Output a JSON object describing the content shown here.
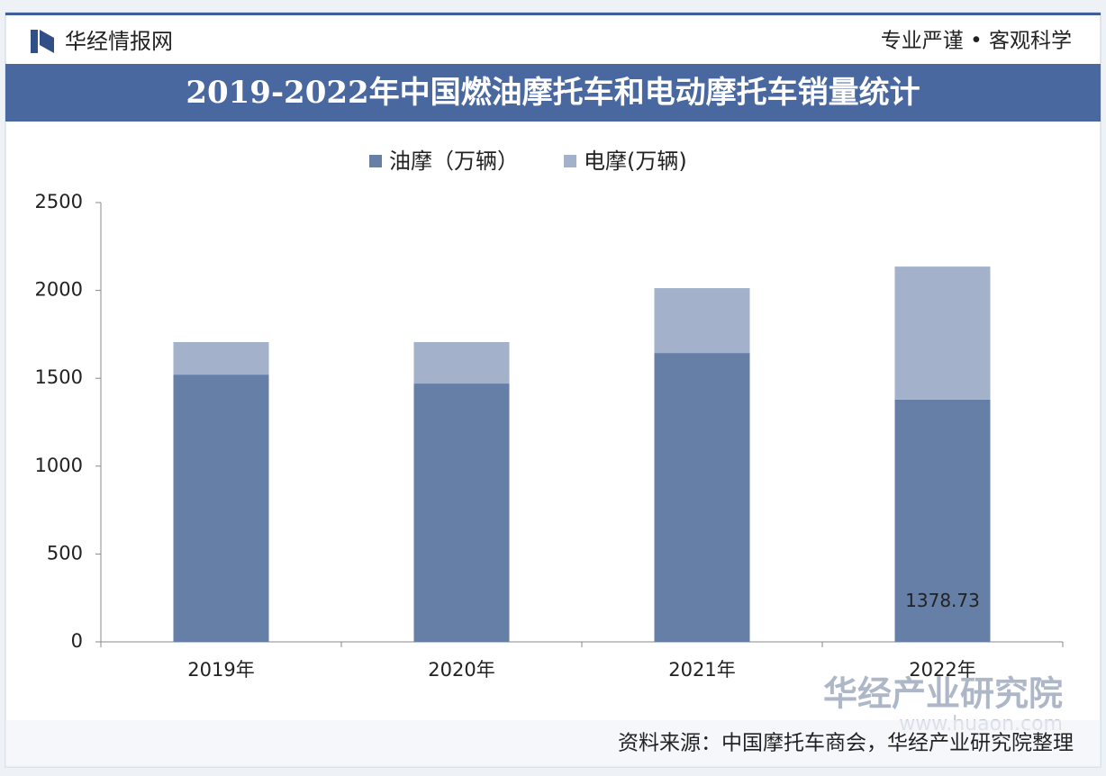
{
  "header": {
    "logo": "华经情报网",
    "slogan": "专业严谨 • 客观科学"
  },
  "chart_data": {
    "type": "stacked_bar",
    "title": "2019-2022年中国燃油摩托车和电动摩托车销量统计",
    "categories": [
      "2019年",
      "2020年",
      "2021年",
      "2022年"
    ],
    "series": [
      {
        "name": "油摩（万辆）",
        "color": "#667fa7",
        "values": [
          1521,
          1470,
          1644,
          1378.73
        ],
        "value_labels": [
          null,
          null,
          null,
          "1378.73"
        ]
      },
      {
        "name": "电摩(万辆)",
        "color": "#a3b1cb",
        "values": [
          185,
          236,
          369,
          757
        ]
      }
    ],
    "ylim": [
      0,
      2500
    ],
    "yticks": [
      0,
      500,
      1000,
      1500,
      2000,
      2500
    ],
    "grid": false,
    "legend": "top",
    "source": "资料来源：中国摩托车商会，华经产业研究院整理",
    "watermark": "华经产业研究院",
    "watermark_url": "www.huaon.com"
  }
}
